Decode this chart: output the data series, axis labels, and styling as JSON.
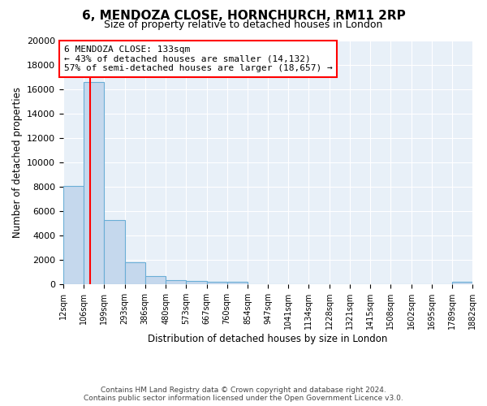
{
  "title": "6, MENDOZA CLOSE, HORNCHURCH, RM11 2RP",
  "subtitle": "Size of property relative to detached houses in London",
  "xlabel": "Distribution of detached houses by size in London",
  "ylabel": "Number of detached properties",
  "bar_edges": [
    12,
    106,
    199,
    293,
    386,
    480,
    573,
    667,
    760,
    854,
    947,
    1041,
    1134,
    1228,
    1321,
    1415,
    1508,
    1602,
    1695,
    1789,
    1882
  ],
  "bar_heights": [
    8100,
    16600,
    5300,
    1800,
    700,
    330,
    270,
    230,
    180,
    0,
    0,
    0,
    0,
    0,
    0,
    0,
    0,
    0,
    0,
    200
  ],
  "bar_color": "#c5d8ed",
  "bar_edge_color": "#6aaed6",
  "red_line_x": 133,
  "annotation_text": "6 MENDOZA CLOSE: 133sqm\n← 43% of detached houses are smaller (14,132)\n57% of semi-detached houses are larger (18,657) →",
  "ylim": [
    0,
    20000
  ],
  "yticks": [
    0,
    2000,
    4000,
    6000,
    8000,
    10000,
    12000,
    14000,
    16000,
    18000,
    20000
  ],
  "tick_labels": [
    "12sqm",
    "106sqm",
    "199sqm",
    "293sqm",
    "386sqm",
    "480sqm",
    "573sqm",
    "667sqm",
    "760sqm",
    "854sqm",
    "947sqm",
    "1041sqm",
    "1134sqm",
    "1228sqm",
    "1321sqm",
    "1415sqm",
    "1508sqm",
    "1602sqm",
    "1695sqm",
    "1789sqm",
    "1882sqm"
  ],
  "footer": "Contains HM Land Registry data © Crown copyright and database right 2024.\nContains public sector information licensed under the Open Government Licence v3.0.",
  "plot_bg_color": "#e8f0f8",
  "grid_color": "#ffffff",
  "title_fontsize": 11,
  "subtitle_fontsize": 9,
  "footer_fontsize": 6.5
}
